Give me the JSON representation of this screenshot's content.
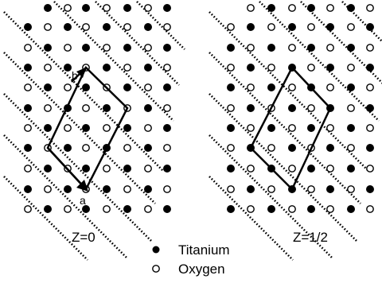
{
  "panels": [
    {
      "label": "Z=0",
      "vector_a": "a",
      "vector_b": "b",
      "shows_vectors": true
    },
    {
      "label": "Z=1/2",
      "shows_vectors": false
    }
  ],
  "legend": [
    {
      "symbol": "filled-circle",
      "label": "Titanium"
    },
    {
      "symbol": "open-circle",
      "label": "Oxygen"
    }
  ],
  "colors": {
    "atom_fill_ti": "#000000",
    "atom_fill_o": "#ffffff",
    "stroke": "#000000"
  }
}
